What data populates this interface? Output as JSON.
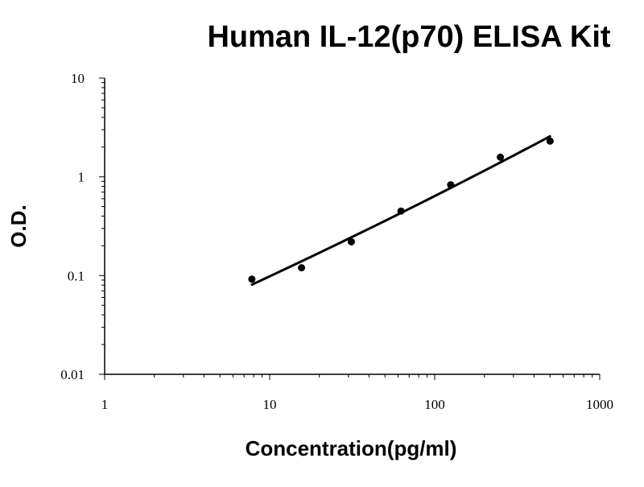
{
  "chart_data": {
    "type": "scatter",
    "title": "Human IL-12(p70) ELISA Kit",
    "xlabel": "Concentration(pg/ml)",
    "ylabel": "O.D.",
    "xscale": "log",
    "yscale": "log",
    "xlim": [
      1,
      1000
    ],
    "ylim": [
      0.01,
      10
    ],
    "x_ticks": [
      1,
      10,
      100,
      1000
    ],
    "x_tick_labels": [
      "1",
      "10",
      "100",
      "1000"
    ],
    "y_ticks": [
      0.01,
      0.1,
      1,
      10
    ],
    "y_tick_labels": [
      "0.01",
      "0.1",
      "1",
      "10"
    ],
    "grid": false,
    "legend": "none",
    "series": [
      {
        "x": [
          7.8,
          15.6,
          31.25,
          62.5,
          125,
          250,
          500
        ],
        "y": [
          0.092,
          0.12,
          0.22,
          0.45,
          0.83,
          1.58,
          2.3
        ],
        "marker": "circle",
        "fit_curve": true,
        "color": "#000000"
      }
    ]
  }
}
